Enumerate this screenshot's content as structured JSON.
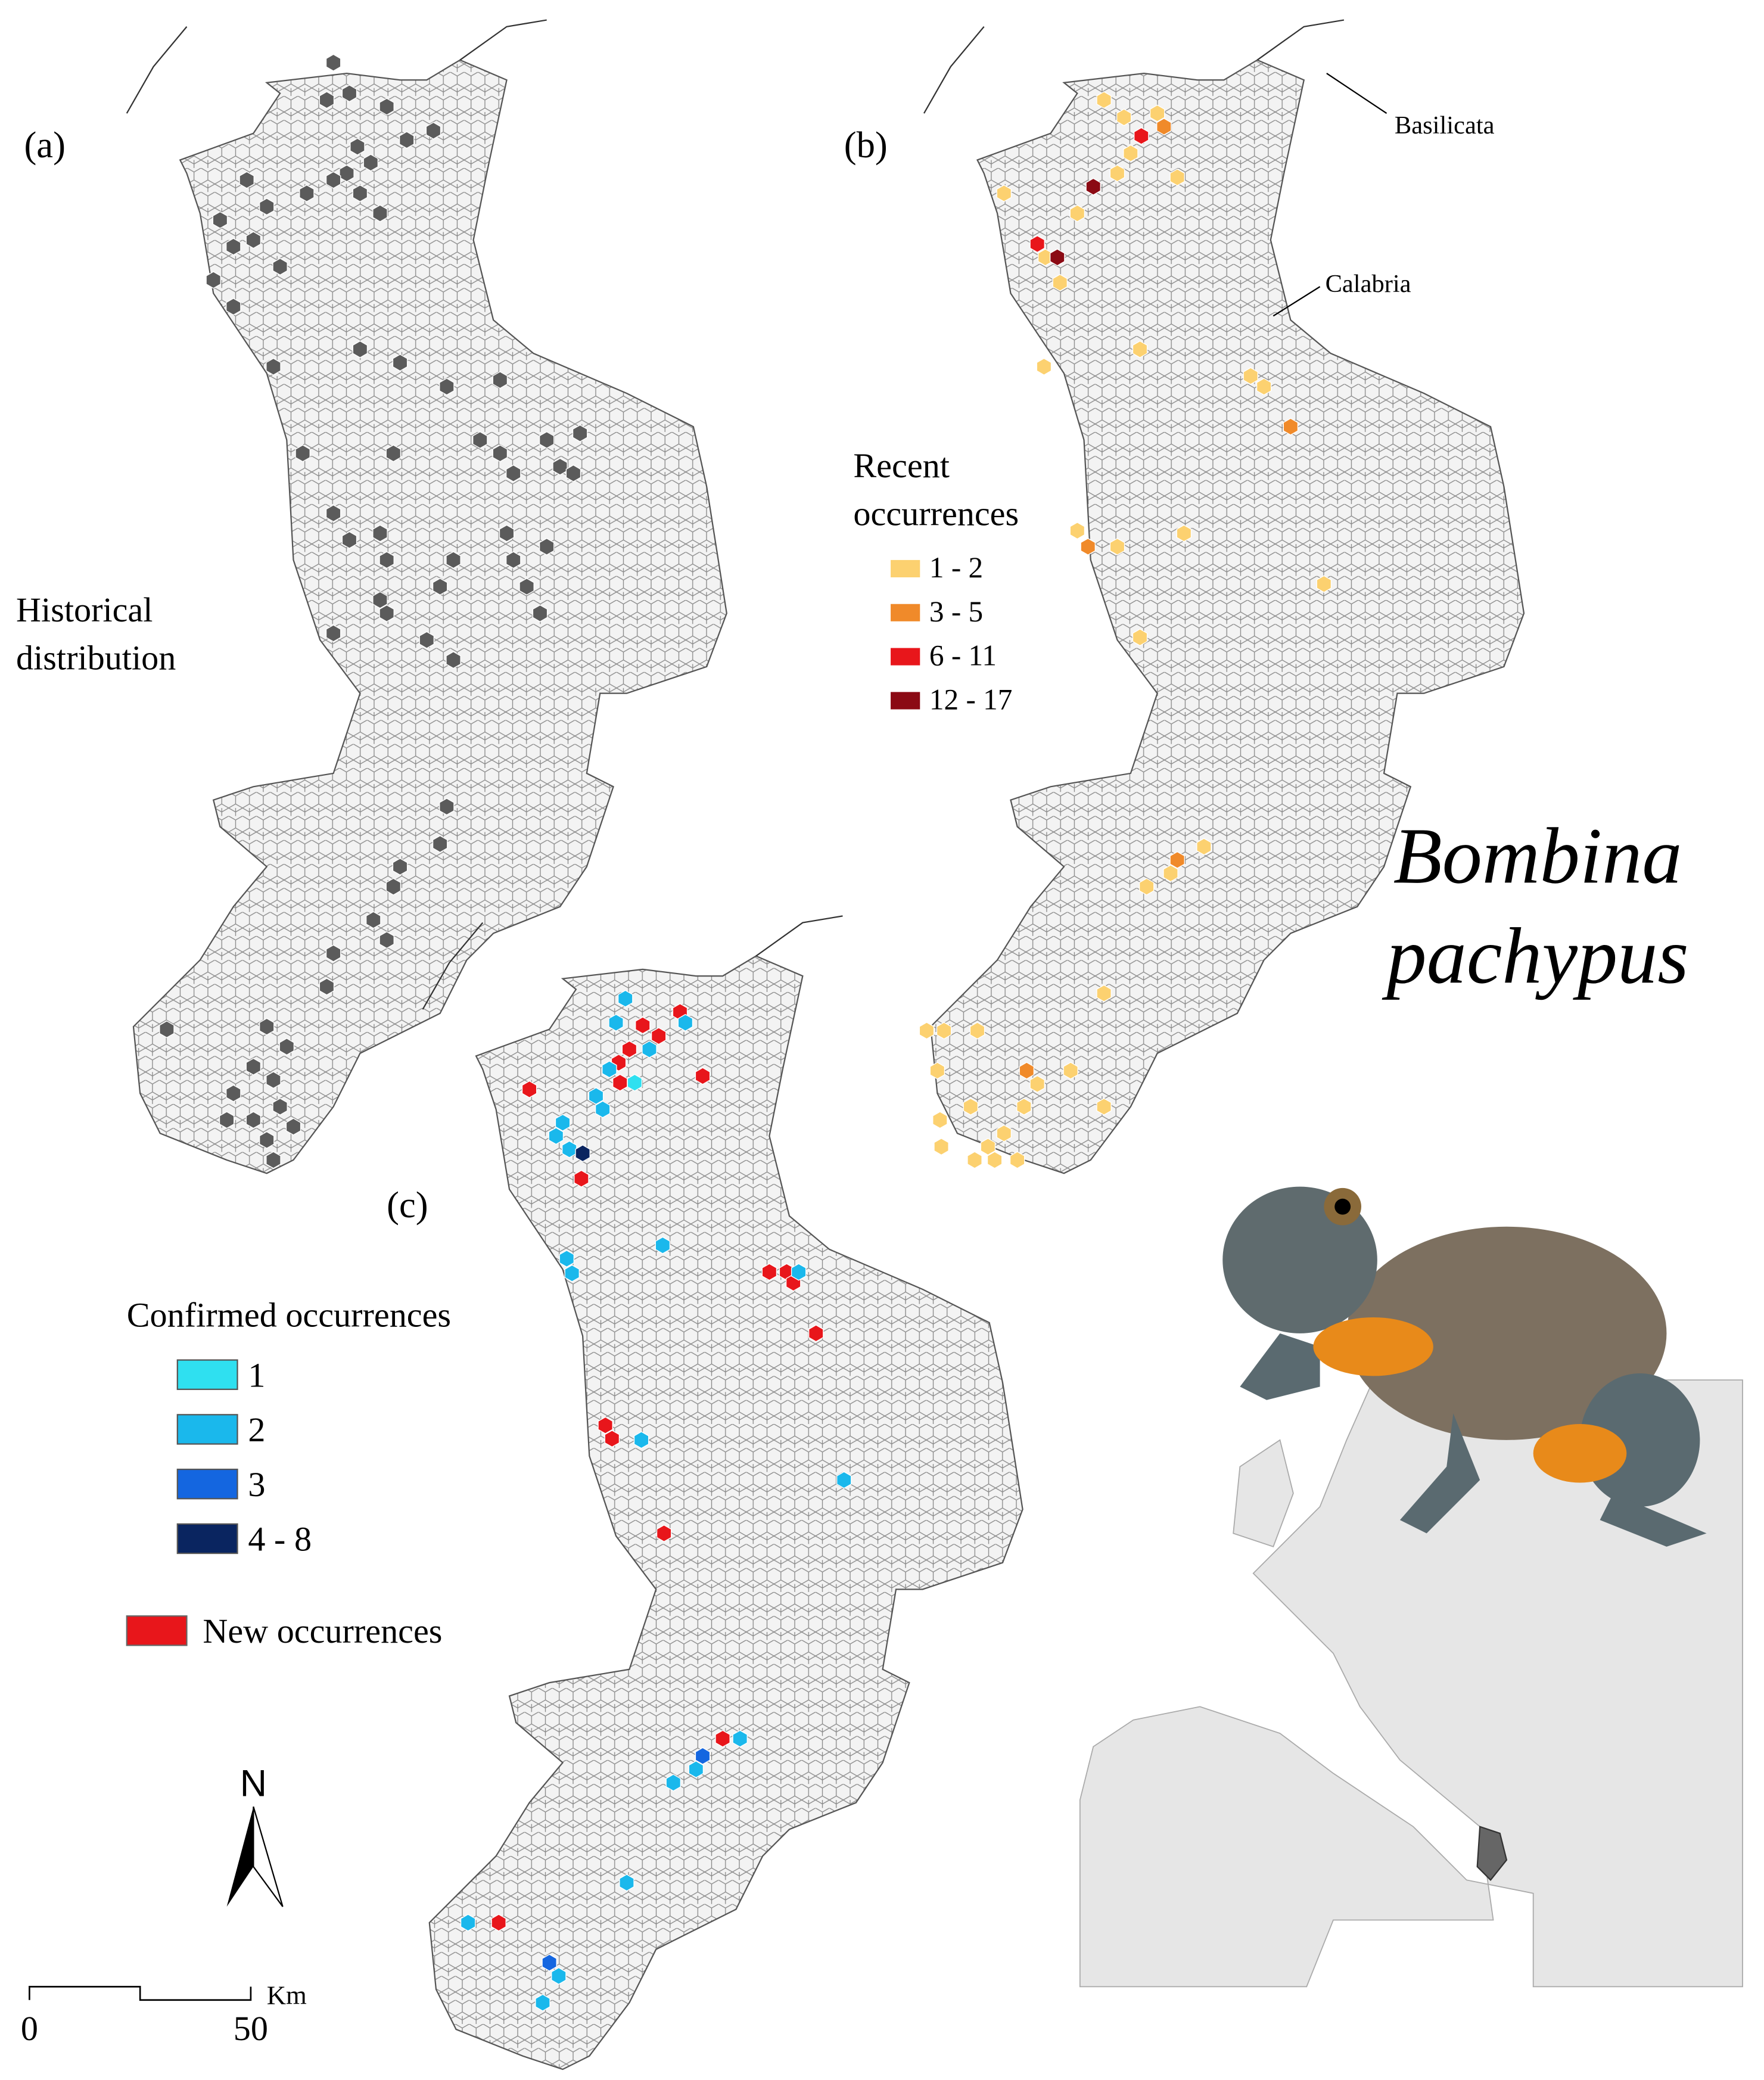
{
  "panels": {
    "a": {
      "label": "(a)",
      "caption": [
        "Historical",
        "distribution"
      ]
    },
    "b": {
      "label": "(b)",
      "legend_title": [
        "Recent",
        "occurrences"
      ],
      "legend": [
        {
          "label": "1 - 2",
          "color": "#fcd170"
        },
        {
          "label": "3 - 5",
          "color": "#f08a2a"
        },
        {
          "label": "6 - 11",
          "color": "#e8161b"
        },
        {
          "label": "12 - 17",
          "color": "#8b0a14"
        }
      ],
      "regions": [
        "Basilicata",
        "Calabria"
      ]
    },
    "c": {
      "label": "(c)",
      "legend_title": "Confirmed occurrences",
      "legend": [
        {
          "label": "1",
          "color": "#2fe0f0"
        },
        {
          "label": "2",
          "color": "#1ab8ec"
        },
        {
          "label": "3",
          "color": "#1466e0"
        },
        {
          "label": "4 - 8",
          "color": "#0a2560"
        }
      ],
      "new": {
        "label": "New occurrences",
        "color": "#e8161b"
      }
    }
  },
  "species": [
    "Bombina",
    "pachypus"
  ],
  "north": "N",
  "scale": {
    "unit": "Km",
    "labels": [
      "0",
      "50"
    ]
  }
}
